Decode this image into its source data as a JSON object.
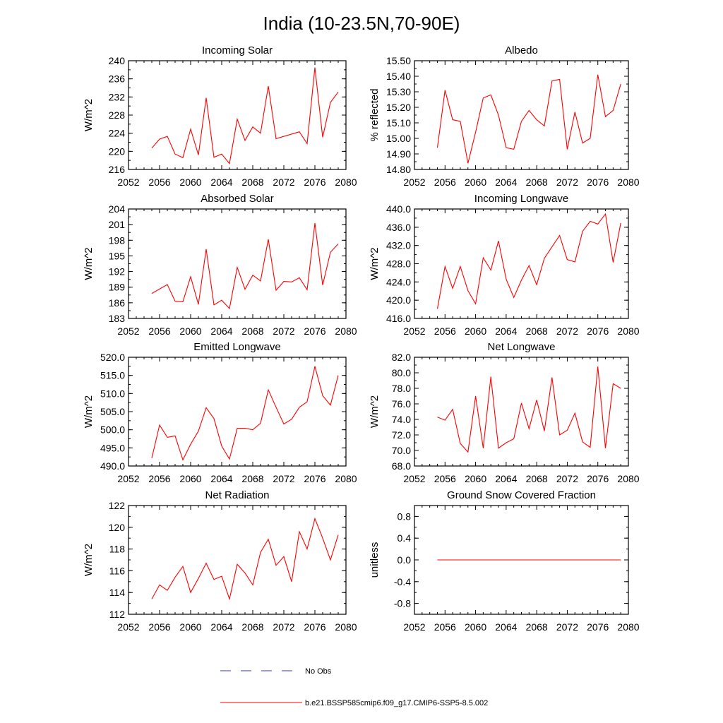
{
  "title": "India (10-23.5N,70-90E)",
  "colors": {
    "model": "#ff0000",
    "obs": "#3333cc",
    "axis": "#000000"
  },
  "legend": [
    {
      "label": "No Obs",
      "style": "dashed",
      "color": "#3333cc"
    },
    {
      "label": "b.e21.BSSP585cmip6.f09_g17.CMIP6-SSP5-8.5.002",
      "style": "solid",
      "color": "#ff0000"
    }
  ],
  "chart_data": [
    {
      "type": "line",
      "title": "Incoming Solar",
      "ylabel": "W/m^2",
      "xlim": [
        2052,
        2080
      ],
      "xticks": [
        "2052",
        "2056",
        "2060",
        "2064",
        "2068",
        "2072",
        "2076",
        "2080"
      ],
      "ylim": [
        216,
        240
      ],
      "yticks": [
        "216",
        "220",
        "224",
        "228",
        "232",
        "236",
        "240"
      ],
      "x": [
        2055,
        2056,
        2057,
        2058,
        2059,
        2060,
        2061,
        2062,
        2063,
        2064,
        2065,
        2066,
        2067,
        2068,
        2069,
        2070,
        2071,
        2074,
        2075,
        2076,
        2077,
        2078,
        2079
      ],
      "values": [
        220.7,
        222.7,
        223.3,
        219.4,
        218.6,
        224.9,
        219.2,
        231.8,
        218.7,
        219.4,
        217.3,
        227.1,
        222.4,
        225.4,
        224.0,
        234.4,
        222.8,
        224.3,
        221.7,
        238.5,
        223.1,
        230.8,
        233.1
      ]
    },
    {
      "type": "line",
      "title": "Albedo",
      "ylabel": "% reflected",
      "xlim": [
        2052,
        2080
      ],
      "xticks": [
        "2052",
        "2056",
        "2060",
        "2064",
        "2068",
        "2072",
        "2076",
        "2080"
      ],
      "ylim": [
        14.8,
        15.5
      ],
      "yticks": [
        "14.80",
        "14.90",
        "15.00",
        "15.10",
        "15.20",
        "15.30",
        "15.40",
        "15.50"
      ],
      "x": [
        2055,
        2056,
        2057,
        2058,
        2059,
        2060,
        2061,
        2062,
        2063,
        2064,
        2065,
        2066,
        2067,
        2068,
        2069,
        2070,
        2071,
        2072,
        2073,
        2074,
        2075,
        2076,
        2077,
        2078,
        2079
      ],
      "values": [
        14.94,
        15.31,
        15.12,
        15.11,
        14.84,
        15.04,
        15.26,
        15.28,
        15.15,
        14.94,
        14.93,
        15.11,
        15.18,
        15.12,
        15.08,
        15.37,
        15.38,
        14.93,
        15.17,
        14.97,
        15.0,
        15.41,
        15.14,
        15.18,
        15.35
      ]
    },
    {
      "type": "line",
      "title": "Absorbed Solar",
      "ylabel": "W/m^2",
      "xlim": [
        2052,
        2080
      ],
      "xticks": [
        "2052",
        "2056",
        "2060",
        "2064",
        "2068",
        "2072",
        "2076",
        "2080"
      ],
      "ylim": [
        183,
        204
      ],
      "yticks": [
        "183",
        "186",
        "189",
        "192",
        "195",
        "198",
        "201",
        "204"
      ],
      "x": [
        2055,
        2057,
        2058,
        2059,
        2060,
        2061,
        2062,
        2063,
        2064,
        2065,
        2066,
        2067,
        2068,
        2069,
        2070,
        2071,
        2072,
        2073,
        2074,
        2075,
        2076,
        2077,
        2078,
        2079
      ],
      "values": [
        187.8,
        189.5,
        186.3,
        186.2,
        191.0,
        185.7,
        196.3,
        185.6,
        186.5,
        184.9,
        192.8,
        188.6,
        191.3,
        190.2,
        198.2,
        188.4,
        190.1,
        190.0,
        190.8,
        188.5,
        201.3,
        189.4,
        195.7,
        197.3
      ]
    },
    {
      "type": "line",
      "title": "Incoming Longwave",
      "ylabel": "W/m^2",
      "xlim": [
        2052,
        2080
      ],
      "xticks": [
        "2052",
        "2056",
        "2060",
        "2064",
        "2068",
        "2072",
        "2076",
        "2080"
      ],
      "ylim": [
        416,
        440
      ],
      "yticks": [
        "416.0",
        "420.0",
        "424.0",
        "428.0",
        "432.0",
        "436.0",
        "440.0"
      ],
      "x": [
        2055,
        2056,
        2057,
        2058,
        2059,
        2060,
        2061,
        2062,
        2063,
        2064,
        2065,
        2066,
        2067,
        2068,
        2069,
        2070,
        2071,
        2072,
        2073,
        2074,
        2075,
        2076,
        2077,
        2078,
        2079
      ],
      "values": [
        418.1,
        427.4,
        422.6,
        427.4,
        422.1,
        419.2,
        429.3,
        426.6,
        433.0,
        424.6,
        420.6,
        424.4,
        427.6,
        423.4,
        429.2,
        431.7,
        434.2,
        428.9,
        428.4,
        435.1,
        437.3,
        436.7,
        438.9,
        428.3,
        436.9
      ]
    },
    {
      "type": "line",
      "title": "Emitted Longwave",
      "ylabel": "W/m^2",
      "xlim": [
        2052,
        2080
      ],
      "xticks": [
        "2052",
        "2056",
        "2060",
        "2064",
        "2068",
        "2072",
        "2076",
        "2080"
      ],
      "ylim": [
        490,
        520
      ],
      "yticks": [
        "490.0",
        "495.0",
        "500.0",
        "505.0",
        "510.0",
        "515.0",
        "520.0"
      ],
      "x": [
        2055,
        2056,
        2057,
        2058,
        2059,
        2060,
        2061,
        2062,
        2063,
        2064,
        2065,
        2066,
        2067,
        2068,
        2069,
        2070,
        2071,
        2072,
        2073,
        2074,
        2075,
        2076,
        2077,
        2078,
        2079
      ],
      "values": [
        492.2,
        501.3,
        497.9,
        498.3,
        491.7,
        496.0,
        499.6,
        506.1,
        503.1,
        495.5,
        491.9,
        500.4,
        500.4,
        500.0,
        501.8,
        511.0,
        506.2,
        501.6,
        502.9,
        506.2,
        507.7,
        517.5,
        509.4,
        506.8,
        515.0
      ]
    },
    {
      "type": "line",
      "title": "Net Longwave",
      "ylabel": "W/m^2",
      "xlim": [
        2052,
        2080
      ],
      "xticks": [
        "2052",
        "2056",
        "2060",
        "2064",
        "2068",
        "2072",
        "2076",
        "2080"
      ],
      "ylim": [
        68,
        82
      ],
      "yticks": [
        "68.0",
        "70.0",
        "72.0",
        "74.0",
        "76.0",
        "78.0",
        "80.0",
        "82.0"
      ],
      "x": [
        2055,
        2056,
        2057,
        2058,
        2059,
        2060,
        2061,
        2062,
        2063,
        2064,
        2065,
        2066,
        2067,
        2068,
        2069,
        2070,
        2071,
        2072,
        2073,
        2074,
        2075,
        2076,
        2077,
        2078,
        2079
      ],
      "values": [
        74.3,
        73.9,
        75.3,
        70.9,
        69.8,
        77.0,
        70.3,
        79.5,
        70.3,
        71.0,
        71.5,
        76.1,
        72.8,
        76.5,
        72.5,
        79.4,
        72.0,
        72.6,
        74.8,
        71.1,
        70.4,
        80.8,
        70.3,
        78.6,
        78.0
      ]
    },
    {
      "type": "line",
      "title": "Net Radiation",
      "ylabel": "W/m^2",
      "xlim": [
        2052,
        2080
      ],
      "xticks": [
        "2052",
        "2056",
        "2060",
        "2064",
        "2068",
        "2072",
        "2076",
        "2080"
      ],
      "ylim": [
        112,
        122
      ],
      "yticks": [
        "112",
        "114",
        "116",
        "118",
        "120",
        "122"
      ],
      "x": [
        2055,
        2056,
        2057,
        2058,
        2059,
        2060,
        2061,
        2062,
        2063,
        2064,
        2065,
        2066,
        2067,
        2068,
        2069,
        2070,
        2071,
        2072,
        2073,
        2074,
        2075,
        2076,
        2077,
        2078,
        2079
      ],
      "values": [
        113.4,
        114.7,
        114.2,
        115.4,
        116.4,
        114.0,
        115.3,
        116.7,
        115.2,
        115.5,
        113.4,
        116.6,
        115.8,
        114.7,
        117.7,
        118.9,
        116.5,
        117.3,
        115.0,
        119.6,
        118.0,
        120.8,
        119.0,
        117.0,
        119.3
      ]
    },
    {
      "type": "line",
      "title": "Ground Snow Covered Fraction",
      "ylabel": "unitless",
      "xlim": [
        2052,
        2080
      ],
      "xticks": [
        "2052",
        "2056",
        "2060",
        "2064",
        "2068",
        "2072",
        "2076",
        "2080"
      ],
      "ylim": [
        -1.0,
        1.0
      ],
      "yticks": [
        "-0.8",
        "-0.4",
        "0.0",
        "0.4",
        "0.8"
      ],
      "ytick_values": [
        -0.8,
        -0.4,
        0.0,
        0.4,
        0.8
      ],
      "x": [
        2055,
        2079
      ],
      "values": [
        0.0,
        0.0
      ]
    }
  ]
}
